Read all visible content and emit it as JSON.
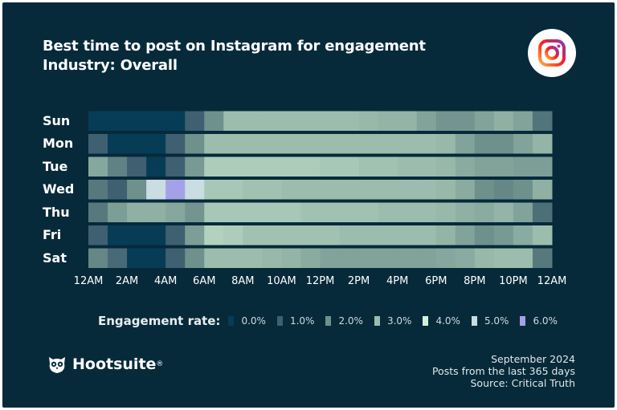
{
  "chart_data": {
    "type": "heatmap",
    "title": "Best time to post on Instagram for engagement",
    "subtitle": "Industry: Overall",
    "rows": [
      "Sun",
      "Mon",
      "Tue",
      "Wed",
      "Thu",
      "Fri",
      "Sat"
    ],
    "x_tick_labels": [
      "12AM",
      "2AM",
      "4AM",
      "6AM",
      "8AM",
      "10AM",
      "12PM",
      "2PM",
      "4PM",
      "6PM",
      "8PM",
      "10PM",
      "12AM"
    ],
    "columns_per_row": 24,
    "values": [
      [
        0,
        0,
        0,
        0,
        0,
        1,
        2,
        3,
        3,
        3,
        3,
        3,
        3,
        3,
        2.9,
        2.8,
        2.8,
        2.4,
        2.1,
        2.1,
        2.4,
        2.7,
        2.4,
        1.4
      ],
      [
        1,
        0,
        0,
        0,
        1,
        2,
        3,
        3,
        3,
        3,
        3,
        3,
        3,
        3,
        3,
        3,
        3,
        3,
        2.9,
        2.4,
        2,
        2,
        2.4,
        2.8
      ],
      [
        2.5,
        1.7,
        1,
        0,
        1,
        2.2,
        3.3,
        3.3,
        3.3,
        3.3,
        3.3,
        3.3,
        3.2,
        3.2,
        3.1,
        3.1,
        3,
        3,
        2.9,
        2.6,
        2.4,
        2.4,
        2.3,
        2.3
      ],
      [
        1.5,
        1,
        2,
        5,
        6,
        5,
        3.2,
        3.2,
        3.1,
        3.1,
        3,
        3,
        3,
        3,
        3,
        3,
        3,
        3,
        2.9,
        2.6,
        2,
        1.8,
        2,
        2.7
      ],
      [
        1.5,
        2.3,
        2.7,
        2.7,
        2.5,
        2.1,
        3.2,
        3.2,
        3.2,
        3.2,
        3.2,
        3.1,
        3.1,
        3.1,
        3.1,
        3,
        3,
        3,
        2.9,
        2.7,
        2.6,
        2.8,
        2.4,
        1.3
      ],
      [
        1,
        0,
        0,
        0,
        1,
        2.3,
        3.4,
        3.3,
        3.1,
        3.1,
        3.1,
        3.1,
        3.1,
        3,
        3,
        3,
        3,
        3,
        2.8,
        2.4,
        2,
        2.2,
        2.6,
        3
      ],
      [
        1.8,
        1.2,
        0,
        0,
        1,
        2,
        3,
        3,
        3,
        2.9,
        2.8,
        2.6,
        2.4,
        2.4,
        2.4,
        2.4,
        2.4,
        2.4,
        2.5,
        2.6,
        2.9,
        3,
        3,
        1.5
      ]
    ],
    "legend": {
      "label": "Engagement rate:",
      "stops": [
        {
          "value": 0,
          "label": "0.0%",
          "color": "#063c56"
        },
        {
          "value": 1,
          "label": "1.0%",
          "color": "#3e6070"
        },
        {
          "value": 2,
          "label": "2.0%",
          "color": "#6f918c"
        },
        {
          "value": 3,
          "label": "3.0%",
          "color": "#9cbdad"
        },
        {
          "value": 4,
          "label": "4.0%",
          "color": "#d3f2d8"
        },
        {
          "value": 5,
          "label": "5.0%",
          "color": "#c9dde2"
        },
        {
          "value": 6,
          "label": "6.0%",
          "color": "#a3a2e6"
        }
      ]
    }
  },
  "brand": {
    "name": "Hootsuite",
    "mark": "®"
  },
  "footer": {
    "lines": [
      "September 2024",
      "Posts from the last 365 days",
      "Source: Critical Truth"
    ]
  },
  "colors": {
    "background": "#062a3a"
  }
}
